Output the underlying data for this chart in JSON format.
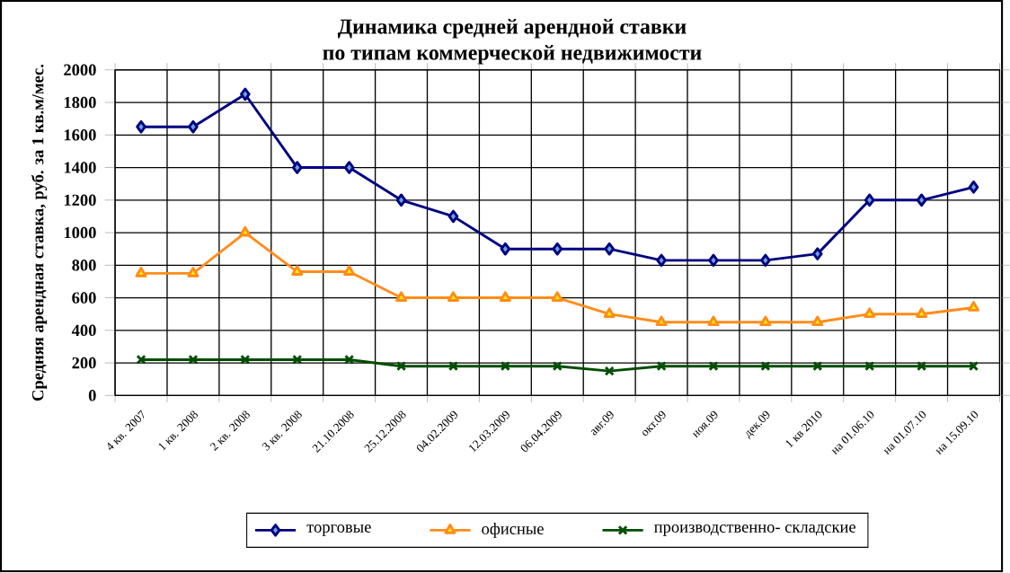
{
  "chart_data": {
    "type": "line",
    "title": "Динамика средней арендной ставки\nпо типам коммерческой недвижимости",
    "ylabel": "Средняя арендная ставка, руб. за 1 кв.м/мес.",
    "categories": [
      "4 кв. 2007",
      "1 кв. 2008",
      "2 кв. 2008",
      "3 кв. 2008",
      "21.10.2008",
      "25.12.2008",
      "04.02.2009",
      "12.03.2009",
      "06.04.2009",
      "авг.09",
      "окт.09",
      "ноя.09",
      "дек.09",
      "1 кв 2010",
      "на 01.06.10",
      "на 01.07.10",
      "на 15.09.10"
    ],
    "series": [
      {
        "name": "торговые",
        "color": "#000080",
        "marker": "diamond",
        "values": [
          1650,
          1650,
          1850,
          1400,
          1400,
          1200,
          1100,
          900,
          900,
          900,
          830,
          830,
          830,
          870,
          1200,
          1200,
          1280
        ]
      },
      {
        "name": "офисные",
        "color": "#ff8c1a",
        "marker": "triangle",
        "values": [
          750,
          750,
          1000,
          760,
          760,
          600,
          600,
          600,
          600,
          500,
          450,
          450,
          450,
          450,
          500,
          500,
          540
        ]
      },
      {
        "name": "производственно- складские",
        "color": "#004d00",
        "marker": "cross",
        "values": [
          220,
          220,
          220,
          220,
          220,
          180,
          180,
          180,
          180,
          150,
          180,
          180,
          180,
          180,
          180,
          180,
          180
        ]
      }
    ],
    "ylim": [
      0,
      2000
    ],
    "yticks": [
      0,
      200,
      400,
      600,
      800,
      1000,
      1200,
      1400,
      1600,
      1800,
      2000
    ],
    "grid": true,
    "legend": "bottom",
    "line_style": "solid"
  }
}
